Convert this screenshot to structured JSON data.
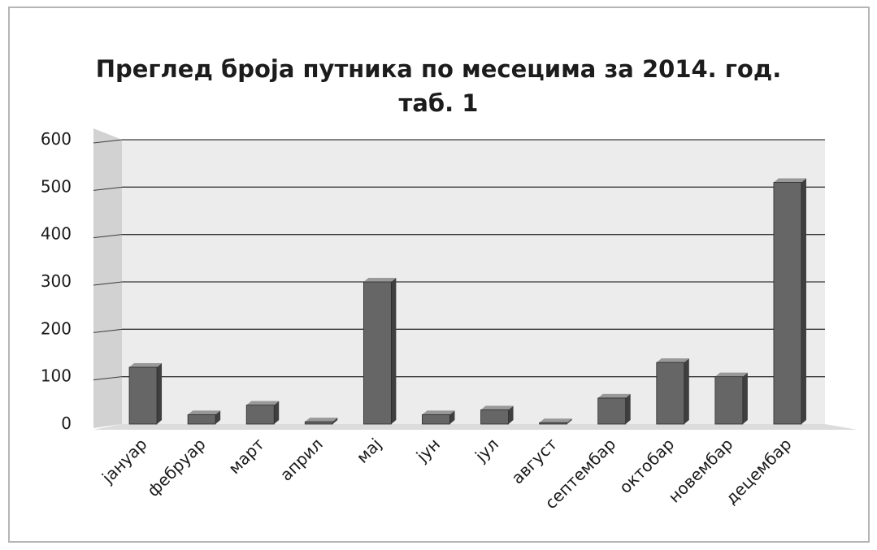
{
  "chart_data": {
    "type": "bar",
    "title": "Преглед броја путника по месецима за 2014. год.",
    "subtitle": "таб. 1",
    "categories": [
      "јануар",
      "фебруар",
      "март",
      "април",
      "мај",
      "јун",
      "јул",
      "август",
      "септембар",
      "октобар",
      "новембар",
      "децембар"
    ],
    "values": [
      120,
      20,
      40,
      5,
      300,
      20,
      30,
      3,
      55,
      130,
      100,
      510
    ],
    "ylim": [
      0,
      600
    ],
    "yticks": [
      "0",
      "100",
      "200",
      "300",
      "400",
      "500",
      "600"
    ],
    "grid": true,
    "legend": "none",
    "colors": {
      "bar_front": "#666666",
      "bar_side": "#3f3f3f",
      "bar_top": "#999999",
      "back_wall": "#ececec",
      "side_wall": "#d2d2d2",
      "floor": "#dcdcdc",
      "gridline": "#3a3a3a"
    }
  }
}
